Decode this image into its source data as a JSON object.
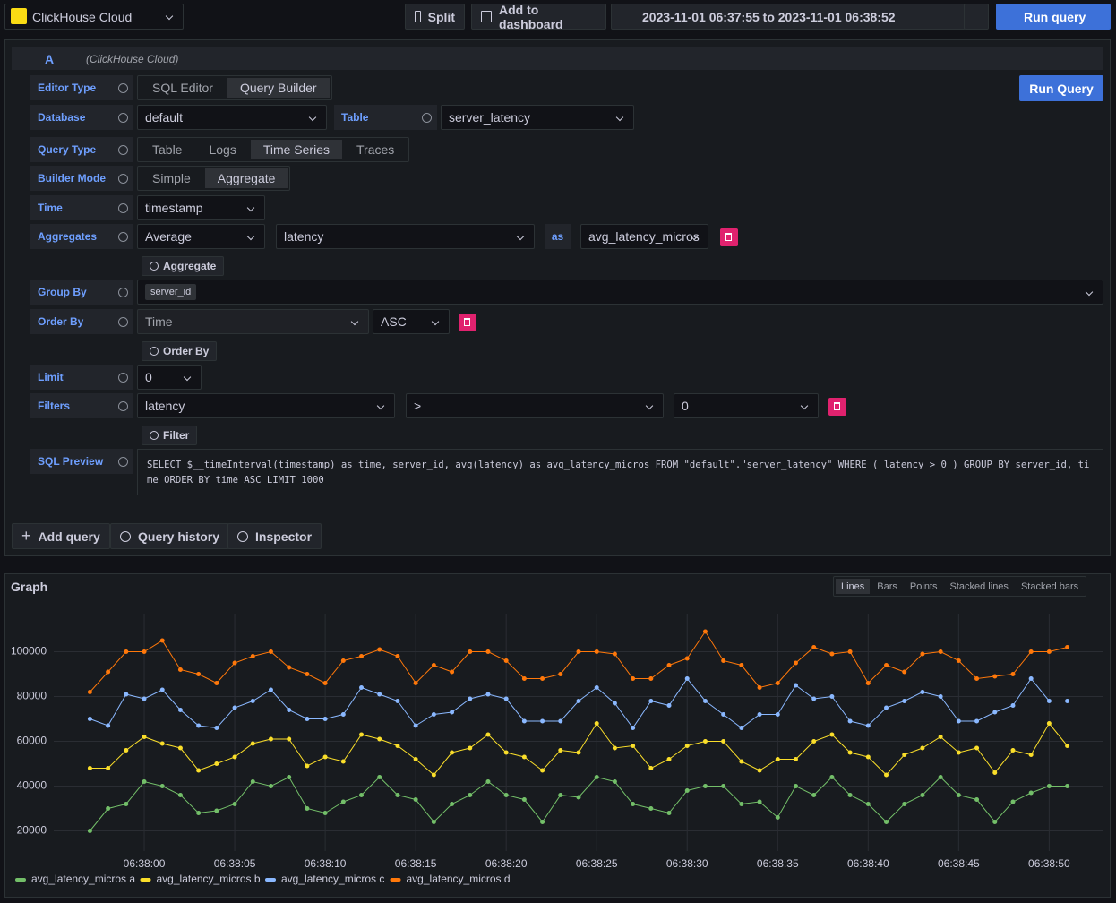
{
  "toolbar": {
    "datasource": "ClickHouse Cloud",
    "split": "Split",
    "add_dashboard": "Add to dashboard",
    "time_range": "2023-11-01 06:37:55 to 2023-11-01 06:38:52",
    "run_query": "Run query"
  },
  "query": {
    "ref": "A",
    "datasource": "(ClickHouse Cloud)",
    "run_button": "Run Query",
    "editor_type": {
      "label": "Editor Type",
      "options": [
        "SQL Editor",
        "Query Builder"
      ]
    },
    "database": {
      "label": "Database",
      "value": "default"
    },
    "table": {
      "label": "Table",
      "value": "server_latency"
    },
    "query_type": {
      "label": "Query Type",
      "options": [
        "Table",
        "Logs",
        "Time Series",
        "Traces"
      ]
    },
    "builder_mode": {
      "label": "Builder Mode",
      "options": [
        "Simple",
        "Aggregate"
      ]
    },
    "time": {
      "label": "Time",
      "value": "timestamp"
    },
    "aggregates": {
      "label": "Aggregates",
      "function": "Average",
      "column": "latency",
      "as": "as",
      "alias": "avg_latency_micros",
      "add_button": "Aggregate"
    },
    "group_by": {
      "label": "Group By",
      "tag": "server_id"
    },
    "order_by": {
      "label": "Order By",
      "column": "Time",
      "direction": "ASC",
      "add_button": "Order By"
    },
    "limit": {
      "label": "Limit",
      "value": "0"
    },
    "filters": {
      "label": "Filters",
      "column": "latency",
      "operator": ">",
      "value": "0",
      "add_button": "Filter"
    },
    "sql_preview": {
      "label": "SQL Preview",
      "text": "SELECT $__timeInterval(timestamp) as time, server_id, avg(latency) as avg_latency_micros FROM \"default\".\"server_latency\" WHERE ( latency > 0 ) GROUP BY server_id, time ORDER BY time ASC LIMIT 1000"
    }
  },
  "footer_buttons": [
    "Add query",
    "Query history",
    "Inspector"
  ],
  "graph": {
    "title": "Graph",
    "modes": [
      "Lines",
      "Bars",
      "Points",
      "Stacked lines",
      "Stacked bars"
    ]
  },
  "chart_data": {
    "type": "line",
    "x": [
      "06:37:57",
      "06:37:58",
      "06:37:59",
      "06:38:00",
      "06:38:01",
      "06:38:02",
      "06:38:03",
      "06:38:04",
      "06:38:05",
      "06:38:06",
      "06:38:07",
      "06:38:08",
      "06:38:09",
      "06:38:10",
      "06:38:11",
      "06:38:12",
      "06:38:13",
      "06:38:14",
      "06:38:15",
      "06:38:16",
      "06:38:17",
      "06:38:18",
      "06:38:19",
      "06:38:20",
      "06:38:21",
      "06:38:22",
      "06:38:23",
      "06:38:24",
      "06:38:25",
      "06:38:26",
      "06:38:27",
      "06:38:28",
      "06:38:29",
      "06:38:30",
      "06:38:31",
      "06:38:32",
      "06:38:33",
      "06:38:34",
      "06:38:35",
      "06:38:36",
      "06:38:37",
      "06:38:38",
      "06:38:39",
      "06:38:40",
      "06:38:41",
      "06:38:42",
      "06:38:43",
      "06:38:44",
      "06:38:45",
      "06:38:46",
      "06:38:47",
      "06:38:48",
      "06:38:49",
      "06:38:50",
      "06:38:51"
    ],
    "series": [
      {
        "name": "avg_latency_micros a",
        "color": "#73bf69",
        "values": [
          20000,
          30000,
          32000,
          42000,
          40000,
          36000,
          28000,
          29000,
          32000,
          42000,
          40000,
          44000,
          30000,
          28000,
          33000,
          36000,
          44000,
          36000,
          34000,
          24000,
          32000,
          36000,
          42000,
          36000,
          34000,
          24000,
          36000,
          35000,
          44000,
          42000,
          32000,
          30000,
          28000,
          38000,
          40000,
          40000,
          32000,
          33000,
          26000,
          40000,
          36000,
          44000,
          36000,
          32000,
          24000,
          32000,
          36000,
          44000,
          36000,
          34000,
          24000,
          33000,
          37000,
          40000,
          40000
        ]
      },
      {
        "name": "avg_latency_micros b",
        "color": "#fade2a",
        "values": [
          48000,
          48000,
          56000,
          62000,
          59000,
          57000,
          47000,
          50000,
          53000,
          59000,
          61000,
          61000,
          49000,
          53000,
          51000,
          63000,
          61000,
          58000,
          52000,
          45000,
          55000,
          57000,
          63000,
          55000,
          53000,
          47000,
          56000,
          55000,
          68000,
          57000,
          58000,
          48000,
          52000,
          58000,
          60000,
          60000,
          51000,
          47000,
          52000,
          52000,
          60000,
          63000,
          55000,
          53000,
          45000,
          54000,
          57000,
          62000,
          55000,
          57000,
          46000,
          56000,
          54000,
          68000,
          58000
        ]
      },
      {
        "name": "avg_latency_micros c",
        "color": "#8ab8ff",
        "values": [
          70000,
          67000,
          81000,
          79000,
          83000,
          74000,
          67000,
          66000,
          75000,
          78000,
          83000,
          74000,
          70000,
          70000,
          72000,
          84000,
          81000,
          78000,
          67000,
          72000,
          73000,
          79000,
          81000,
          79000,
          69000,
          69000,
          69000,
          78000,
          84000,
          77000,
          66000,
          78000,
          76000,
          88000,
          78000,
          72000,
          66000,
          72000,
          72000,
          85000,
          79000,
          80000,
          69000,
          67000,
          75000,
          78000,
          82000,
          80000,
          69000,
          69000,
          73000,
          76000,
          88000,
          78000,
          78000
        ]
      },
      {
        "name": "avg_latency_micros d",
        "color": "#ff780a",
        "values": [
          82000,
          91000,
          100000,
          100000,
          105000,
          92000,
          90000,
          86000,
          95000,
          98000,
          100000,
          93000,
          90000,
          86000,
          96000,
          98000,
          101000,
          98000,
          86000,
          94000,
          91000,
          100000,
          100000,
          96000,
          88000,
          88000,
          90000,
          100000,
          100000,
          99000,
          88000,
          88000,
          94000,
          97000,
          109000,
          96000,
          94000,
          84000,
          86000,
          95000,
          102000,
          99000,
          100000,
          86000,
          94000,
          91000,
          99000,
          100000,
          96000,
          88000,
          89000,
          90000,
          100000,
          100000,
          102000
        ]
      }
    ],
    "xlim": [
      "06:37:55",
      "06:38:53"
    ],
    "xticks": [
      "06:38:00",
      "06:38:05",
      "06:38:10",
      "06:38:15",
      "06:38:20",
      "06:38:25",
      "06:38:30",
      "06:38:35",
      "06:38:40",
      "06:38:45",
      "06:38:50"
    ],
    "ylim": [
      11000,
      117000
    ],
    "yticks": [
      20000,
      40000,
      60000,
      80000,
      100000
    ],
    "grid": true,
    "legend": "bottom"
  }
}
